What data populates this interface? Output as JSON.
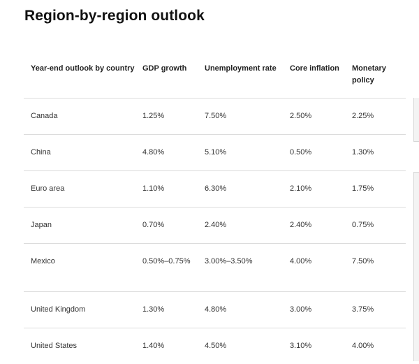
{
  "title": "Region-by-region outlook",
  "table": {
    "headers": [
      "Year-end outlook by country",
      "GDP growth",
      "Unemployment rate",
      "Core inflation",
      "Monetary policy"
    ],
    "rows": [
      [
        "Canada",
        "1.25%",
        "7.50%",
        "2.50%",
        "2.25%"
      ],
      [
        "China",
        "4.80%",
        "5.10%",
        "0.50%",
        "1.30%"
      ],
      [
        "Euro area",
        "1.10%",
        "6.30%",
        "2.10%",
        "1.75%"
      ],
      [
        "Japan",
        "0.70%",
        "2.40%",
        "2.40%",
        "0.75%"
      ],
      [
        "Mexico",
        "0.50%–0.75%",
        "3.00%–3.50%",
        "4.00%",
        "7.50%"
      ],
      [
        "United Kingdom",
        "1.30%",
        "4.80%",
        "3.00%",
        "3.75%"
      ],
      [
        "United States",
        "1.40%",
        "4.50%",
        "3.10%",
        "4.00%"
      ]
    ]
  },
  "colors": {
    "text": "#1a1a1a",
    "divider": "#dcdcdc",
    "background": "#ffffff"
  }
}
